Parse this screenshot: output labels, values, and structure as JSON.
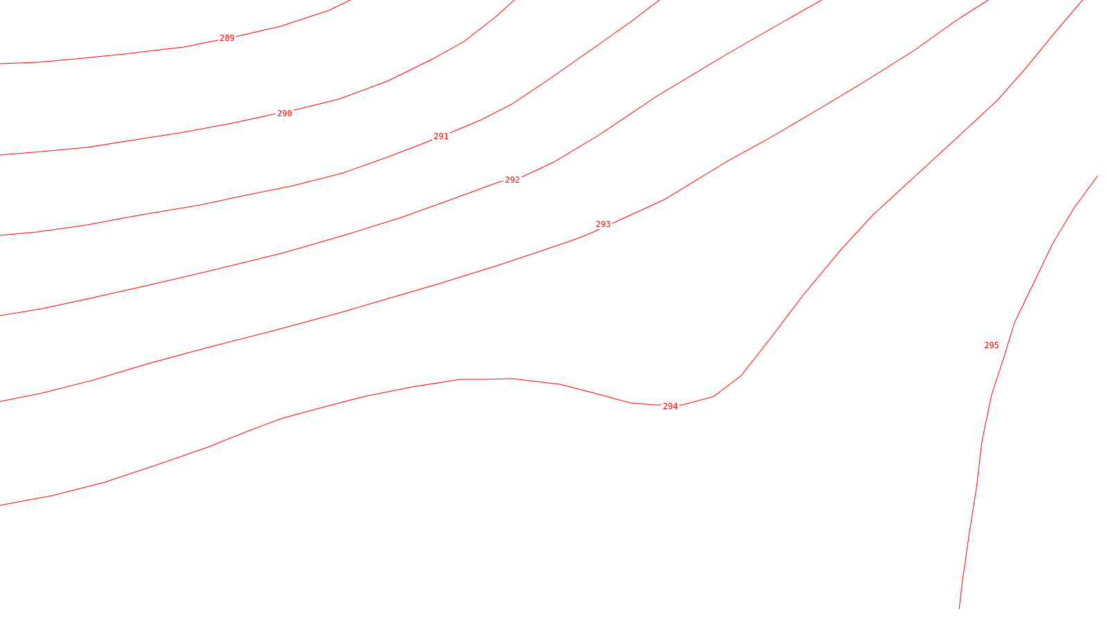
{
  "map": {
    "line_color": "#ff0000",
    "background_color": "#ffffff",
    "contours": [
      {
        "level": "289"
      },
      {
        "level": "290"
      },
      {
        "level": "291"
      },
      {
        "level": "292"
      },
      {
        "level": "293"
      },
      {
        "level": "294"
      },
      {
        "level": "295"
      }
    ]
  }
}
